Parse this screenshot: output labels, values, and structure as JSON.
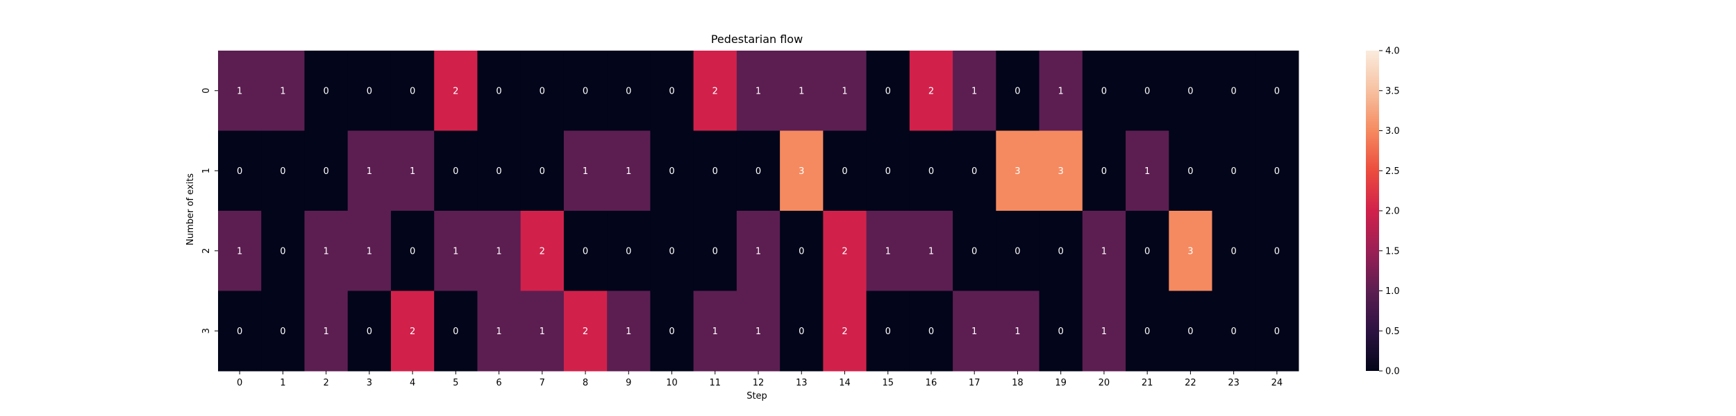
{
  "chart_data": {
    "type": "heatmap",
    "title": "Pedestarian flow",
    "xlabel": "Step",
    "ylabel": "Number of exits",
    "x_categories": [
      "0",
      "1",
      "2",
      "3",
      "4",
      "5",
      "6",
      "7",
      "8",
      "9",
      "10",
      "11",
      "12",
      "13",
      "14",
      "15",
      "16",
      "17",
      "18",
      "19",
      "20",
      "21",
      "22",
      "23",
      "24"
    ],
    "y_categories": [
      "0",
      "1",
      "2",
      "3"
    ],
    "values": [
      [
        1,
        1,
        0,
        0,
        0,
        2,
        0,
        0,
        0,
        0,
        0,
        2,
        1,
        1,
        1,
        0,
        2,
        1,
        0,
        1,
        0,
        0,
        0,
        0,
        0
      ],
      [
        0,
        0,
        0,
        1,
        1,
        0,
        0,
        0,
        1,
        1,
        0,
        0,
        0,
        3,
        0,
        0,
        0,
        0,
        3,
        3,
        0,
        1,
        0,
        0,
        0
      ],
      [
        1,
        0,
        1,
        1,
        0,
        1,
        1,
        2,
        0,
        0,
        0,
        0,
        1,
        0,
        2,
        1,
        1,
        0,
        0,
        0,
        1,
        0,
        3,
        0,
        0
      ],
      [
        0,
        0,
        1,
        0,
        2,
        0,
        1,
        1,
        2,
        1,
        0,
        1,
        1,
        0,
        2,
        0,
        0,
        1,
        1,
        0,
        1,
        0,
        0,
        0,
        0
      ]
    ],
    "colorbar": {
      "min": 0,
      "max": 4,
      "ticks": [
        "0.0",
        "0.5",
        "1.0",
        "1.5",
        "2.0",
        "2.5",
        "3.0",
        "3.5",
        "4.0"
      ]
    },
    "colors": {
      "0": "#03051a",
      "1": "#5c1e51",
      "2": "#d1214b",
      "3": "#f58a60",
      "4": "#faebdd"
    },
    "annotations": true,
    "grid": false
  }
}
